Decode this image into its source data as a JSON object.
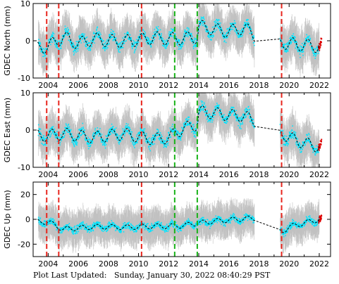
{
  "footer": {
    "label": "Plot Last Updated:",
    "timestamp": "Sunday, January 30, 2022 08:40:29 PST"
  },
  "colors": {
    "background": "#ffffff",
    "data_points": "#00e5ff",
    "error_bars": "#a8a8a8",
    "model_line": "#000000",
    "recent_points": "#dd0000",
    "red_event": "#e8261e",
    "green_event": "#19b219"
  },
  "chart_data": [
    {
      "type": "scatter",
      "ylabel": "GDEC North (mm)",
      "xlim": [
        2003.0,
        2022.75
      ],
      "ylim": [
        -10,
        10
      ],
      "xticks": [
        2004,
        2006,
        2008,
        2010,
        2012,
        2014,
        2016,
        2018,
        2020,
        2022
      ],
      "yticks": [
        -10,
        0,
        10
      ],
      "data_gap": [
        2017.7,
        2019.4
      ],
      "red_event_lines": [
        2003.9,
        2004.7,
        2010.2,
        2019.5
      ],
      "green_event_lines": [
        2012.4,
        2013.9
      ],
      "model_line": {
        "x": [
          2003.3,
          2004.0,
          2005.0,
          2006.0,
          2007.0,
          2008.0,
          2009.0,
          2010.0,
          2011.0,
          2012.0,
          2013.0,
          2013.9,
          2014.0,
          2015.0,
          2016.0,
          2017.0,
          2017.7,
          2019.4,
          2019.6,
          2020.0,
          2021.0,
          2022.0
        ],
        "y": [
          -2.0,
          -1.5,
          1.0,
          -0.8,
          0.5,
          0.0,
          -0.2,
          0.3,
          0.8,
          0.5,
          0.6,
          1.0,
          4.0,
          3.0,
          2.5,
          3.5,
          1.5,
          -0.5,
          -0.5,
          -0.8,
          -1.2,
          -1.5
        ],
        "seasonal_amplitude": 1.7
      },
      "scatter_spread": 3.5,
      "error_bar_spread": 6.0
    },
    {
      "type": "scatter",
      "ylabel": "GDEC East (mm)",
      "xlim": [
        2003.0,
        2022.75
      ],
      "ylim": [
        -10,
        10
      ],
      "xticks": [
        2004,
        2006,
        2008,
        2010,
        2012,
        2014,
        2016,
        2018,
        2020,
        2022
      ],
      "yticks": [
        -10,
        0,
        10
      ],
      "data_gap": [
        2017.7,
        2019.4
      ],
      "red_event_lines": [
        2003.9,
        2004.7,
        2010.2,
        2019.5
      ],
      "green_event_lines": [
        2012.4,
        2013.9
      ],
      "model_line": {
        "x": [
          2003.3,
          2004.0,
          2005.0,
          2006.0,
          2007.0,
          2008.0,
          2009.0,
          2010.0,
          2011.0,
          2012.0,
          2013.0,
          2013.9,
          2014.0,
          2015.0,
          2016.0,
          2017.0,
          2017.7,
          2019.4,
          2019.6,
          2020.0,
          2021.0,
          2022.0
        ],
        "y": [
          -1.5,
          -1.5,
          -1.0,
          -1.5,
          -2.0,
          -1.5,
          -1.0,
          -1.8,
          -2.5,
          -2.0,
          0.5,
          1.5,
          5.0,
          4.5,
          4.0,
          3.8,
          2.5,
          -1.0,
          -1.0,
          -2.0,
          -3.5,
          -4.5
        ],
        "seasonal_amplitude": 1.6
      },
      "scatter_spread": 3.5,
      "error_bar_spread": 6.0
    },
    {
      "type": "scatter",
      "ylabel": "GDEC Up (mm)",
      "xlim": [
        2003.0,
        2022.75
      ],
      "ylim": [
        -30,
        30
      ],
      "xticks": [
        2004,
        2006,
        2008,
        2010,
        2012,
        2014,
        2016,
        2018,
        2020,
        2022
      ],
      "yticks": [
        -20,
        0,
        20
      ],
      "data_gap": [
        2017.7,
        2019.4
      ],
      "red_event_lines": [
        2003.9,
        2004.7,
        2010.2,
        2019.5
      ],
      "green_event_lines": [
        2012.4,
        2013.9
      ],
      "model_line": {
        "x": [
          2003.3,
          2004.0,
          2005.0,
          2006.0,
          2007.0,
          2008.0,
          2009.0,
          2010.0,
          2011.0,
          2012.0,
          2013.0,
          2013.9,
          2014.0,
          2015.0,
          2016.0,
          2017.0,
          2017.7,
          2019.4,
          2019.6,
          2020.0,
          2021.0,
          2022.0
        ],
        "y": [
          -2.0,
          -2.0,
          -8.0,
          -7.0,
          -6.0,
          -6.0,
          -6.5,
          -6.0,
          -5.5,
          -5.5,
          -5.0,
          -3.0,
          -3.0,
          -1.5,
          -0.5,
          0.5,
          1.0,
          -9.5,
          -9.5,
          -6.0,
          -3.0,
          0.0
        ],
        "seasonal_amplitude": 2.0
      },
      "scatter_spread": 7.0,
      "error_bar_spread": 16.0
    }
  ]
}
